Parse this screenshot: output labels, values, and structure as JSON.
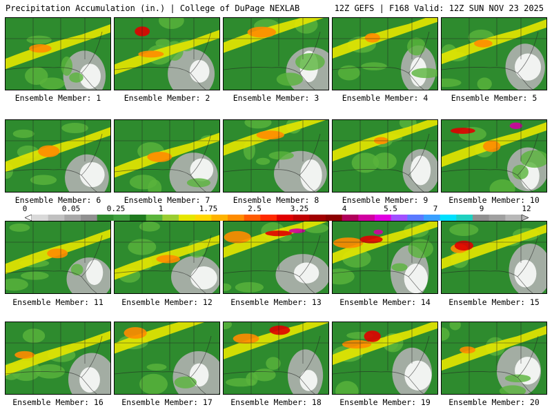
{
  "header": {
    "title": "Precipitation Accumulation (in.) | College of DuPage NEXLAB",
    "valid": "12Z GEFS | F168 Valid: 12Z SUN NOV 23 2025"
  },
  "colorbar": {
    "labels": [
      "0",
      "0.05",
      "0.25",
      "1",
      "1.75",
      "2.5",
      "3.25",
      "4",
      "5.5",
      "7",
      "9",
      "12"
    ],
    "colors": [
      "#d9d9d9",
      "#c0c0c0",
      "#a8a8a8",
      "#909090",
      "#2e8b2e",
      "#3e9e3e",
      "#1f7a1f",
      "#5ab43c",
      "#9acd32",
      "#e6e600",
      "#ffd700",
      "#ffb300",
      "#ff8c00",
      "#ff5a00",
      "#ff2a00",
      "#e00000",
      "#c00000",
      "#a00000",
      "#8b0000",
      "#b0005a",
      "#d000a0",
      "#e000e0",
      "#a050ff",
      "#5a7aff",
      "#3aa0ff",
      "#00e0ff",
      "#20d0c0",
      "#909090",
      "#a0a0a0",
      "#b8b8b8"
    ]
  },
  "panels": [
    {
      "label": "Ensemble Member: 1"
    },
    {
      "label": "Ensemble Member: 2"
    },
    {
      "label": "Ensemble Member: 3"
    },
    {
      "label": "Ensemble Member: 4"
    },
    {
      "label": "Ensemble Member: 5"
    },
    {
      "label": "Ensemble Member: 6"
    },
    {
      "label": "Ensemble Member: 7"
    },
    {
      "label": "Ensemble Member: 8"
    },
    {
      "label": "Ensemble Member: 9"
    },
    {
      "label": "Ensemble Member: 10"
    },
    {
      "label": "Ensemble Member: 11"
    },
    {
      "label": "Ensemble Member: 12"
    },
    {
      "label": "Ensemble Member: 13"
    },
    {
      "label": "Ensemble Member: 14"
    },
    {
      "label": "Ensemble Member: 15"
    },
    {
      "label": "Ensemble Member: 16"
    },
    {
      "label": "Ensemble Member: 17"
    },
    {
      "label": "Ensemble Member: 18"
    },
    {
      "label": "Ensemble Member: 19"
    },
    {
      "label": "Ensemble Member: 20"
    }
  ],
  "colors": {
    "green": "#2e8b2e",
    "light_green": "#5ab43c",
    "yellow": "#e6e600",
    "orange": "#ff8c00",
    "red": "#e00000",
    "magenta": "#d000a0",
    "gray": "#b0b0b0",
    "white": "#ffffff",
    "border": "#000000"
  }
}
